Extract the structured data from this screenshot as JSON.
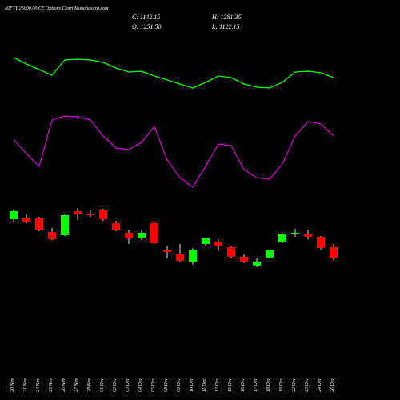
{
  "chart_data": {
    "type": "candlestick",
    "title": "NIFTY 25000.00 CE Options Chart Munafasutra.com",
    "ohlc_labels": [
      "C: 1142.15",
      "H: 1281.35",
      "O: 1251.50",
      "L: 1122.15"
    ],
    "categories": [
      "20 Nov",
      "21 Nov",
      "24 Nov",
      "25 Nov",
      "26 Nov",
      "27 Nov",
      "28 Nov",
      "01 Dec",
      "02 Dec",
      "03 Dec",
      "04 Dec",
      "05 Dec",
      "08 Dec",
      "09 Dec",
      "10 Dec",
      "11 Dec",
      "12 Dec",
      "15 Dec",
      "16 Dec",
      "17 Dec",
      "18 Dec",
      "19 Dec",
      "22 Dec",
      "23 Dec",
      "24 Dec",
      "26 Dec"
    ],
    "open": [
      1524,
      1540,
      1532,
      1399,
      1368,
      1602,
      1579,
      1618,
      1485,
      1392,
      1337,
      1485,
      1220,
      1181,
      1103,
      1282,
      1306,
      1251,
      1158,
      1072,
      1150,
      1298,
      1376,
      1376,
      1353,
      1251.5
    ],
    "high": [
      1618,
      1571,
      1548,
      1438,
      1571,
      1633,
      1610,
      1626,
      1509,
      1415,
      1423,
      1493,
      1259,
      1282,
      1243,
      1345,
      1329,
      1259,
      1181,
      1142,
      1228,
      1392,
      1431,
      1423,
      1360,
      1281.35
    ],
    "low": [
      1501,
      1485,
      1407,
      1321,
      1360,
      1516,
      1548,
      1509,
      1407,
      1282,
      1321,
      1282,
      1142,
      1111,
      1080,
      1267,
      1212,
      1142,
      1095,
      1056,
      1142,
      1290,
      1353,
      1329,
      1228,
      1122.15
    ],
    "close": [
      1602,
      1501,
      1423,
      1329,
      1563,
      1571,
      1563,
      1524,
      1423,
      1345,
      1392,
      1290,
      1204,
      1119,
      1228,
      1337,
      1267,
      1158,
      1111,
      1111,
      1220,
      1384,
      1392,
      1353,
      1243,
      1142.15
    ],
    "up_color": "#00ff00",
    "down_color": "#ff0000",
    "ylim": [
      1000,
      1720
    ],
    "lines": [
      {
        "color": "#00ff00",
        "values": [
          228,
          220,
          213,
          206,
          225,
          226,
          225,
          222,
          215,
          210,
          211,
          205,
          200,
          195,
          190,
          197,
          205,
          203,
          195,
          191,
          190,
          197,
          210,
          211,
          209,
          203
        ]
      },
      {
        "color": "#cc00cc",
        "values": [
          126,
          108,
          92,
          150,
          155,
          154,
          150,
          130,
          115,
          113,
          122,
          142,
          100,
          78,
          66,
          92,
          120,
          118,
          88,
          78,
          76,
          95,
          130,
          148,
          145,
          130
        ]
      }
    ],
    "lines_ylim": [
      0,
      240
    ]
  }
}
